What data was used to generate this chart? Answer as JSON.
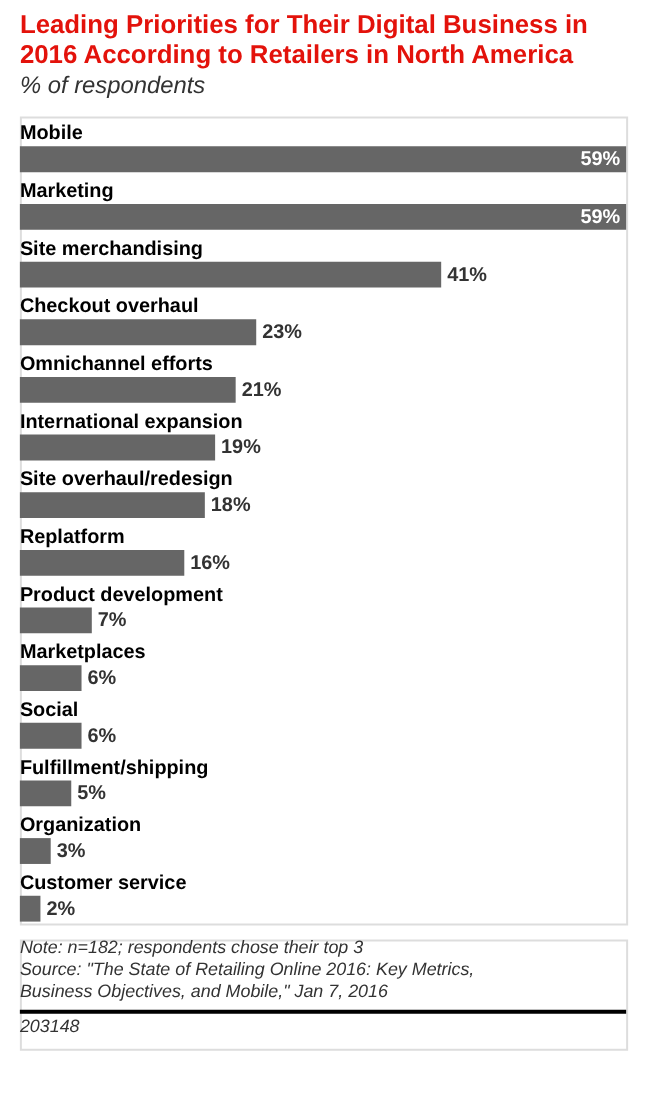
{
  "chart_data": {
    "type": "bar",
    "orientation": "horizontal",
    "title": "Leading Priorities for Their Digital Business in 2016 According to Retailers in North America",
    "subtitle": "% of respondents",
    "categories": [
      "Mobile",
      "Marketing",
      "Site merchandising",
      "Checkout overhaul",
      "Omnichannel efforts",
      "International expansion",
      "Site overhaul/redesign",
      "Replatform",
      "Product development",
      "Marketplaces",
      "Social",
      "Fulfillment/shipping",
      "Organization",
      "Customer service"
    ],
    "values": [
      59,
      59,
      41,
      23,
      21,
      19,
      18,
      16,
      7,
      6,
      6,
      5,
      3,
      2
    ],
    "value_labels": [
      "59%",
      "59%",
      "41%",
      "23%",
      "21%",
      "19%",
      "18%",
      "16%",
      "7%",
      "6%",
      "6%",
      "5%",
      "3%",
      "2%"
    ],
    "color": "#666666",
    "annotations": [
      "Note: n=182; respondents chose their top 3",
      "Source: \"The State of Retailing Online 2016: Key Metrics, Business Objectives, and Mobile,\" Jan 7, 2016",
      "203148"
    ]
  }
}
